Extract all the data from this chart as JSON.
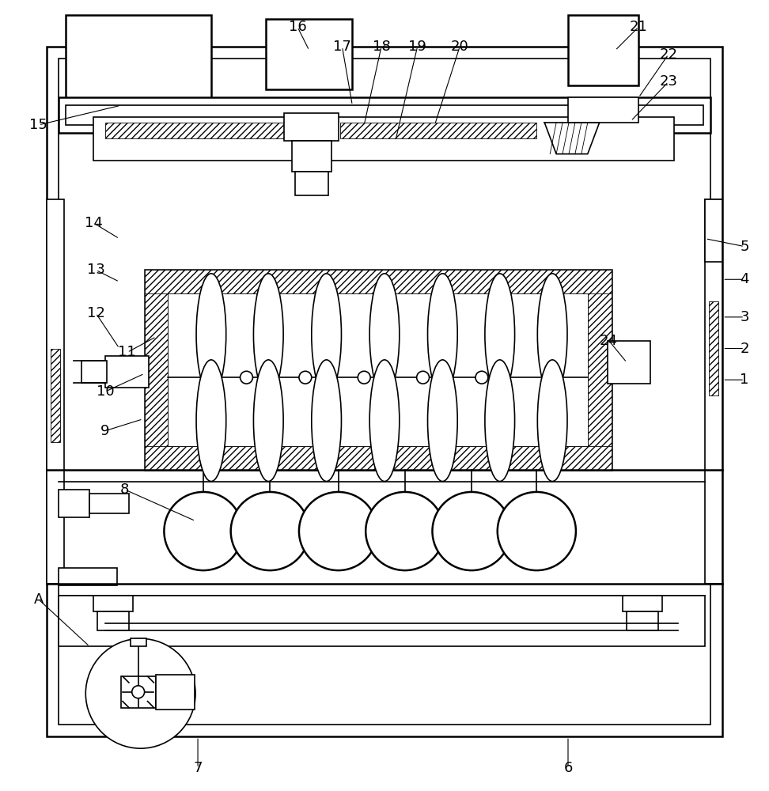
{
  "bg_color": "#ffffff",
  "lc": "#000000",
  "lw": 1.2,
  "lw2": 1.8,
  "lw_thin": 0.6,
  "fig_w": 9.72,
  "fig_h": 10.0,
  "dpi": 100
}
